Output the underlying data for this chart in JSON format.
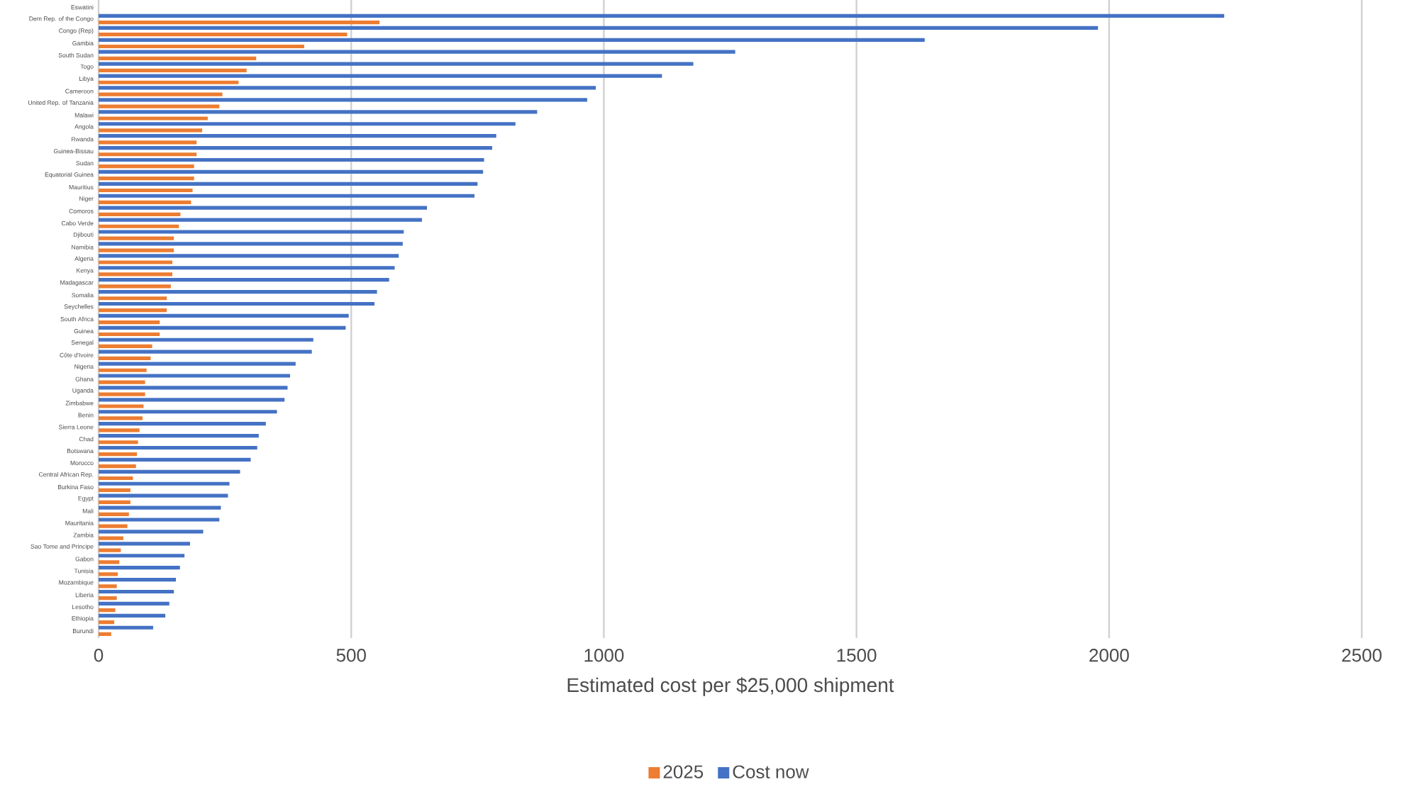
{
  "chart_data": {
    "type": "bar",
    "orientation": "horizontal",
    "xlabel": "Estimated cost per $25,000 shipment",
    "categories": [
      "Eswatini",
      "Dem Rep. of the Congo",
      "Congo (Rep)",
      "Gambia",
      "South Sudan",
      "Togo",
      "Libya",
      "Cameroon",
      "United Rep. of Tanzania",
      "Malawi",
      "Angola",
      "Rwanda",
      "Guinea-Bissau",
      "Sudan",
      "Equatorial Guinea",
      "Mauritius",
      "Niger",
      "Comoros",
      "Cabo Verde",
      "Djibouti",
      "Namibia",
      "Algeria",
      "Kenya",
      "Madagascar",
      "Somalia",
      "Seychelles",
      "South Africa",
      "Guinea",
      "Senegal",
      "Côte d'Ivoire",
      "Nigeria",
      "Ghana",
      "Uganda",
      "Zimbabwe",
      "Benin",
      "Sierra Leone",
      "Chad",
      "Botswana",
      "Morocco",
      "Central African Rep.",
      "Burkina Faso",
      "Egypt",
      "Mali",
      "Mauritania",
      "Zambia",
      "Sao Tome and Principe",
      "Gabon",
      "Tunisia",
      "Mozambique",
      "Liberia",
      "Lesotho",
      "Ethiopia",
      "Burundi"
    ],
    "series": [
      {
        "name": "2025",
        "color": "#ed7d31",
        "values": [
          null,
          556,
          492,
          407,
          312,
          293,
          277,
          245,
          239,
          216,
          205,
          194,
          194,
          189,
          189,
          186,
          183,
          162,
          159,
          149,
          149,
          146,
          146,
          143,
          135,
          135,
          121,
          121,
          106,
          103,
          95,
          92,
          92,
          89,
          87,
          81,
          78,
          76,
          74,
          68,
          63,
          63,
          60,
          57,
          49,
          44,
          41,
          38,
          36,
          36,
          33,
          31,
          25
        ]
      },
      {
        "name": "Cost now",
        "color": "#4472c4",
        "values": [
          null,
          2228,
          1978,
          1635,
          1260,
          1177,
          1115,
          984,
          967,
          868,
          825,
          787,
          779,
          763,
          761,
          750,
          744,
          650,
          640,
          604,
          602,
          594,
          586,
          575,
          551,
          546,
          495,
          489,
          425,
          422,
          390,
          379,
          374,
          368,
          353,
          331,
          317,
          314,
          301,
          280,
          259,
          256,
          242,
          239,
          207,
          181,
          170,
          161,
          153,
          149,
          140,
          132,
          108
        ]
      }
    ],
    "xlim": [
      0,
      2500
    ],
    "xticks": [
      0,
      500,
      1000,
      1500,
      2000,
      2500
    ],
    "grid": "x",
    "legend": "bottom"
  }
}
